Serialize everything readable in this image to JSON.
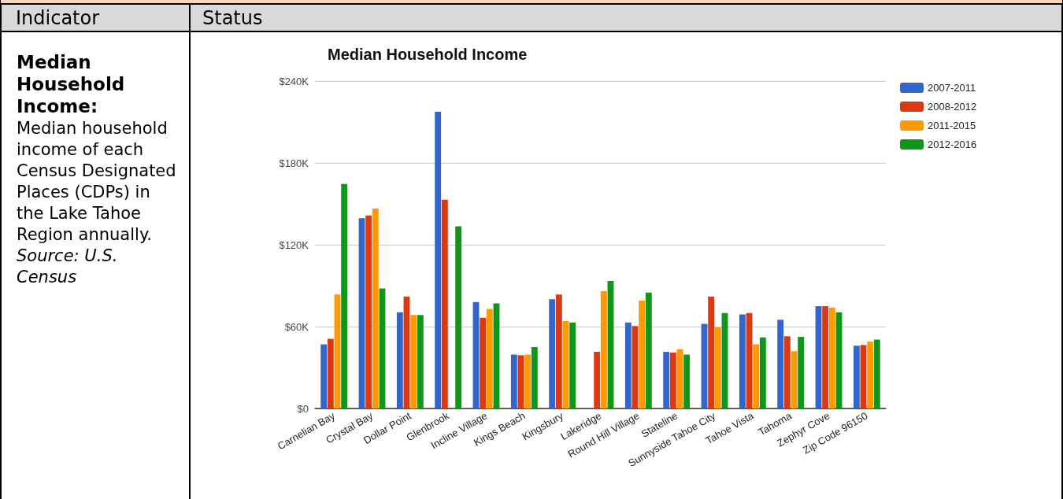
{
  "chart_data": {
    "type": "bar",
    "title": "Median Household Income",
    "annotations": [
      "Indicator",
      "Status",
      "Median Household Income:",
      "Median household income of each Census Designated Places (CDPs) in the Lake Tahoe Region annually.",
      "Source: U.S. Census"
    ],
    "categories": [
      "Carnelian Bay",
      "Crystal Bay",
      "Dollar Point",
      "Glenbrook",
      "Incline Village",
      "Kings Beach",
      "Kingsbury",
      "Lakeridge",
      "Round Hill Village",
      "Stateline",
      "Sunnyside Tahoe City",
      "Tahoe Vista",
      "Tahoma",
      "Zephyr Cove",
      "Zip Code 96150"
    ],
    "series": [
      {
        "name": "2007-2011",
        "color": "#3366cc",
        "values": [
          47000,
          139500,
          70500,
          217500,
          78000,
          39500,
          80000,
          null,
          63000,
          41500,
          62000,
          69000,
          65000,
          75000,
          46000
        ]
      },
      {
        "name": "2008-2012",
        "color": "#dc3912",
        "values": [
          51000,
          141500,
          82000,
          153000,
          66500,
          39000,
          83500,
          41500,
          60500,
          41000,
          82000,
          70000,
          53000,
          75000,
          46500
        ]
      },
      {
        "name": "2011-2015",
        "color": "#ff9900",
        "values": [
          83500,
          146500,
          68500,
          null,
          73000,
          39500,
          64000,
          86000,
          79000,
          43500,
          59500,
          47000,
          42000,
          74000,
          49000
        ]
      },
      {
        "name": "2012-2016",
        "color": "#109618",
        "values": [
          164500,
          88000,
          68500,
          133500,
          77000,
          45000,
          63000,
          93500,
          85000,
          39500,
          70000,
          52000,
          52500,
          70500,
          50500
        ]
      }
    ],
    "ylim": [
      0,
      240000
    ],
    "yticks": [
      {
        "value": 0,
        "label": "$0"
      },
      {
        "value": 60000,
        "label": "$60K"
      },
      {
        "value": 120000,
        "label": "$120K"
      },
      {
        "value": 180000,
        "label": "$180K"
      },
      {
        "value": 240000,
        "label": "$240K"
      }
    ],
    "grid": "y",
    "legend": "top right"
  }
}
